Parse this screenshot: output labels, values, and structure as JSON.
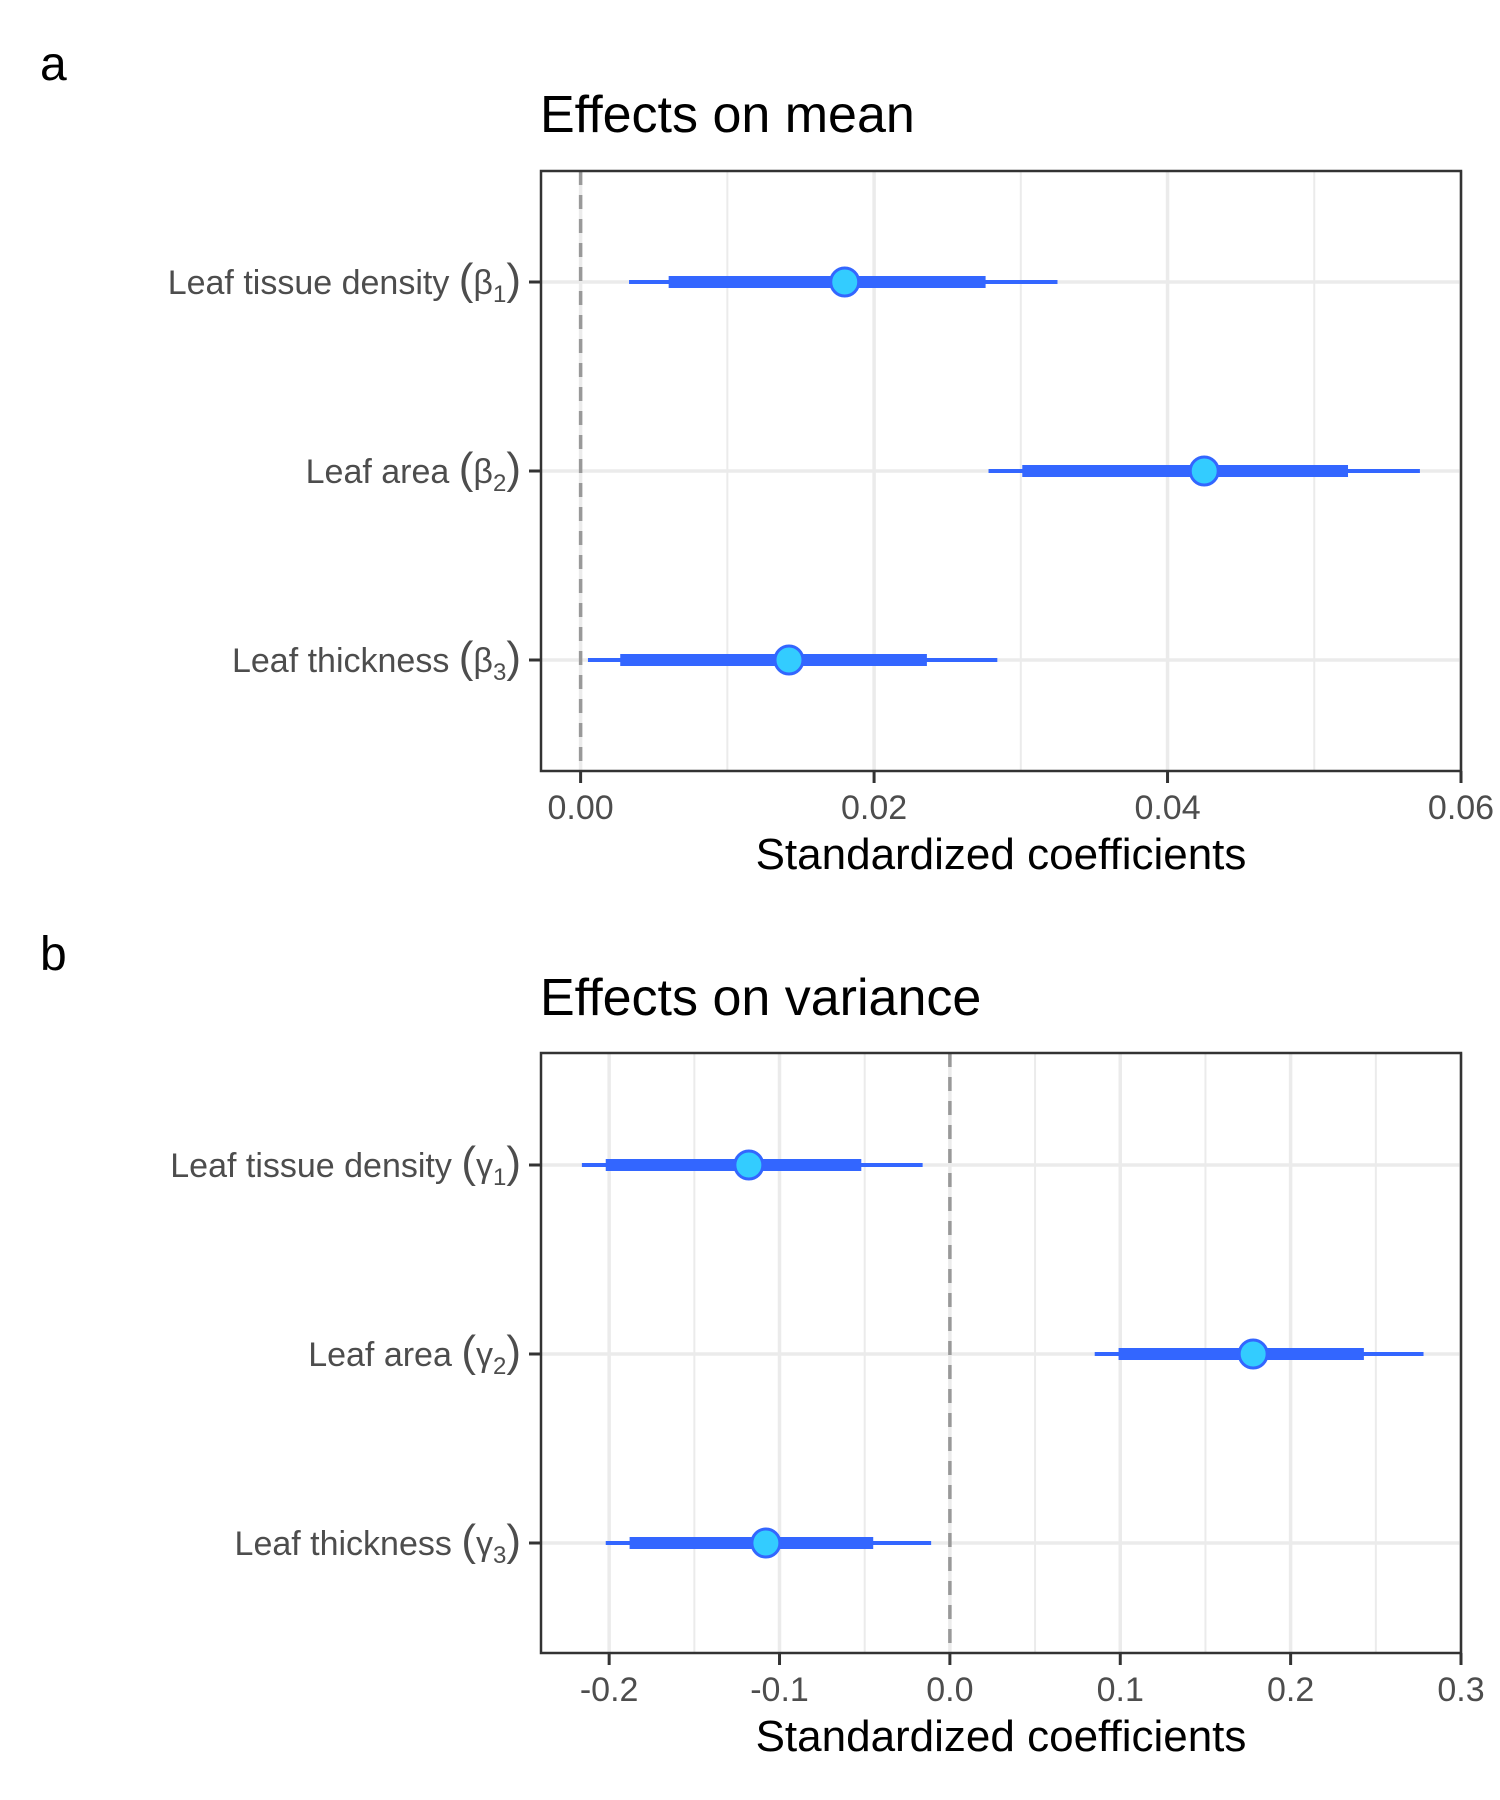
{
  "chart_data": [
    {
      "panel_label": "a",
      "type": "interval",
      "title": "Effects on mean",
      "xlabel": "Standardized coefficients",
      "xlim": [
        -0.0027,
        0.06
      ],
      "xticks": [
        0.0,
        0.02,
        0.04,
        0.06
      ],
      "xtick_labels": [
        "0.00",
        "0.02",
        "0.04",
        "0.06"
      ],
      "minor_xticks": [
        0.01,
        0.03,
        0.05
      ],
      "reference_line": 0.0,
      "rows": [
        {
          "label": "Leaf tissue density",
          "symbol": "β",
          "subscript": "1",
          "estimate": 0.018,
          "inner": [
            0.006,
            0.0276
          ],
          "outer": [
            0.0033,
            0.0325
          ]
        },
        {
          "label": "Leaf area",
          "symbol": "β",
          "subscript": "2",
          "estimate": 0.0425,
          "inner": [
            0.0301,
            0.0523
          ],
          "outer": [
            0.0278,
            0.0572
          ]
        },
        {
          "label": "Leaf thickness",
          "symbol": "β",
          "subscript": "3",
          "estimate": 0.0142,
          "inner": [
            0.0027,
            0.0236
          ],
          "outer": [
            0.0005,
            0.0284
          ]
        }
      ]
    },
    {
      "panel_label": "b",
      "type": "interval",
      "title": "Effects on variance",
      "xlabel": "Standardized coefficients",
      "xlim": [
        -0.24,
        0.3
      ],
      "xticks": [
        -0.2,
        -0.1,
        0.0,
        0.1,
        0.2,
        0.3
      ],
      "xtick_labels": [
        "-0.2",
        "-0.1",
        "0.0",
        "0.1",
        "0.2",
        "0.3"
      ],
      "minor_xticks": [
        -0.15,
        -0.05,
        0.05,
        0.15,
        0.25
      ],
      "reference_line": 0.0,
      "rows": [
        {
          "label": "Leaf tissue density",
          "symbol": "γ",
          "subscript": "1",
          "estimate": -0.118,
          "inner": [
            -0.202,
            -0.052
          ],
          "outer": [
            -0.216,
            -0.016
          ]
        },
        {
          "label": "Leaf area",
          "symbol": "γ",
          "subscript": "2",
          "estimate": 0.178,
          "inner": [
            0.099,
            0.243
          ],
          "outer": [
            0.085,
            0.278
          ]
        },
        {
          "label": "Leaf thickness",
          "symbol": "γ",
          "subscript": "3",
          "estimate": -0.108,
          "inner": [
            -0.188,
            -0.045
          ],
          "outer": [
            -0.202,
            -0.011
          ]
        }
      ]
    }
  ],
  "colors": {
    "interval": "#3366ff",
    "point_fill": "#33ccff",
    "point_stroke": "#3366ff",
    "grid": "#ebebeb",
    "reference_line": "#999999",
    "frame": "#333333",
    "axis_text": "#4d4d4d",
    "title_text": "#000000"
  }
}
